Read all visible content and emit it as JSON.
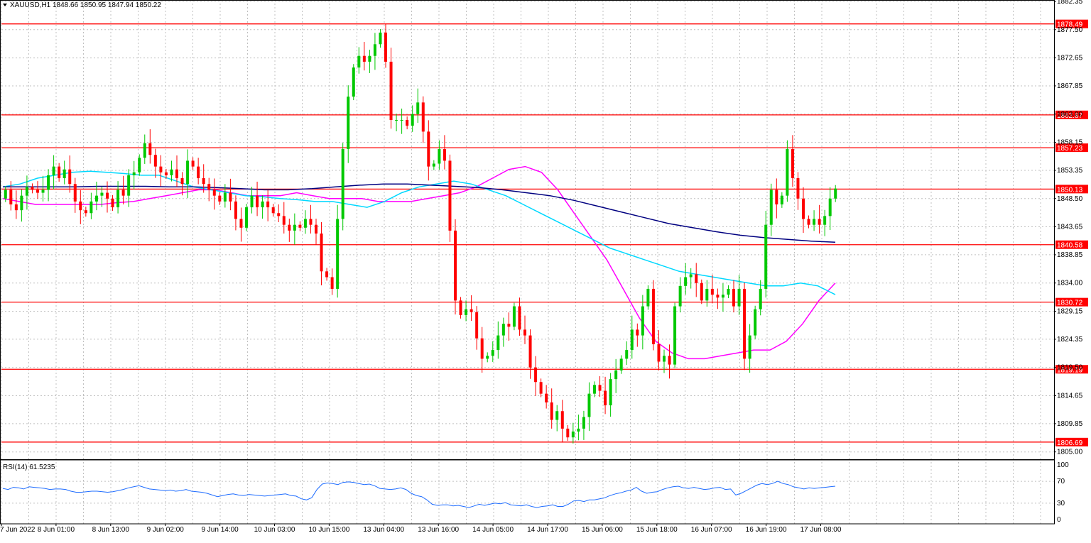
{
  "header": {
    "symbol_label": "XAUUSD,H1",
    "ohlc_label": "1848.66 1850.95 1847.94 1850.22",
    "menu_icon": "triangle-down-icon"
  },
  "rsi_panel": {
    "label": "RSI(14) 61.5235"
  },
  "colors": {
    "bull": "#00c800",
    "bear": "#ff0000",
    "grid": "#c0c0c0",
    "level": "#ff0000",
    "ma_fast": "#ff00ff",
    "ma_mid": "#00d8ff",
    "ma_slow": "#000080",
    "rsi": "#1e6cff"
  },
  "chart_data": [
    {
      "type": "candlestick",
      "title": "XAUUSD,H1",
      "ylim": [
        1803.5,
        1882.35
      ],
      "y_ticks": [
        "1882.35",
        "1877.50",
        "1872.65",
        "1867.85",
        "1863.00",
        "1858.15",
        "1853.35",
        "1848.50",
        "1843.65",
        "1838.85",
        "1834.00",
        "1829.15",
        "1824.35",
        "1819.50",
        "1814.65",
        "1809.85",
        "1805.00"
      ],
      "x_labels": [
        "7 Jun 2022",
        "8 Jun 01:00",
        "8 Jun 13:00",
        "9 Jun 02:00",
        "9 Jun 14:00",
        "10 Jun 03:00",
        "10 Jun 15:00",
        "13 Jun 04:00",
        "13 Jun 16:00",
        "14 Jun 05:00",
        "14 Jun 17:00",
        "15 Jun 06:00",
        "15 Jun 18:00",
        "16 Jun 07:00",
        "16 Jun 19:00",
        "17 Jun 08:00"
      ],
      "levels": [
        "1878.49",
        "1862.87",
        "1857.23",
        "1850.13",
        "1840.58",
        "1830.72",
        "1819.19",
        "1806.69"
      ],
      "candles_close": [
        1850.0,
        1847.5,
        1846.5,
        1849.0,
        1850.5,
        1850.0,
        1849.5,
        1850.0,
        1852.5,
        1854.0,
        1852.0,
        1853.5,
        1851.0,
        1848.0,
        1846.5,
        1846.0,
        1848.0,
        1849.0,
        1849.5,
        1848.5,
        1847.0,
        1850.0,
        1849.0,
        1852.5,
        1853.0,
        1855.5,
        1858.0,
        1856.0,
        1854.0,
        1853.0,
        1852.5,
        1853.5,
        1852.0,
        1851.0,
        1855.0,
        1854.0,
        1852.0,
        1851.0,
        1850.0,
        1849.0,
        1848.0,
        1849.5,
        1848.0,
        1845.0,
        1843.5,
        1847.0,
        1849.0,
        1847.0,
        1848.0,
        1847.0,
        1846.0,
        1845.5,
        1844.0,
        1843.0,
        1844.0,
        1843.5,
        1845.0,
        1844.0,
        1842.5,
        1836.0,
        1835.0,
        1833.0,
        1845.0,
        1857.0,
        1866.0,
        1871.0,
        1873.0,
        1872.0,
        1873.0,
        1875.0,
        1877.0,
        1872.0,
        1862.0,
        1862.0,
        1862.0,
        1861.0,
        1863.0,
        1865.0,
        1860.0,
        1854.0,
        1854.5,
        1857.0,
        1855.0,
        1843.0,
        1831.0,
        1828.5,
        1829.5,
        1829.0,
        1824.5,
        1821.0,
        1821.5,
        1822.5,
        1825.0,
        1827.0,
        1826.5,
        1830.0,
        1826.0,
        1825.0,
        1819.5,
        1817.0,
        1815.0,
        1813.5,
        1810.5,
        1812.0,
        1809.0,
        1807.5,
        1808.5,
        1809.0,
        1811.0,
        1815.0,
        1816.5,
        1815.5,
        1813.0,
        1817.5,
        1819.0,
        1821.0,
        1822.5,
        1826.0,
        1825.0,
        1830.0,
        1833.0,
        1823.5,
        1820.5,
        1821.5,
        1820.0,
        1830.0,
        1833.5,
        1835.0,
        1835.5,
        1834.0,
        1831.0,
        1833.0,
        1832.0,
        1831.5,
        1832.0,
        1833.0,
        1830.0,
        1833.0,
        1821.0,
        1825.0,
        1829.5,
        1833.0,
        1844.0,
        1850.0,
        1847.5,
        1849.0,
        1857.0,
        1852.0,
        1848.5,
        1845.0,
        1844.0,
        1845.0,
        1844.0,
        1845.5,
        1848.5,
        1850.22
      ],
      "series": [
        {
          "name": "ma_fast",
          "values": [
            1848.5,
            1848.0,
            1847.5,
            1847.5,
            1847.5,
            1847.5,
            1847.5,
            1847.8,
            1848.0,
            1848.5,
            1849.0,
            1849.5,
            1850.0,
            1850.0,
            1849.5,
            1849.0,
            1849.0,
            1849.0,
            1849.5,
            1849.0,
            1848.5,
            1848.5,
            1848.5,
            1848.0,
            1848.0,
            1848.0,
            1848.5,
            1849.0,
            1849.5,
            1850.5,
            1852.0,
            1853.5,
            1854.0,
            1853.0,
            1850.0,
            1846.0,
            1842.0,
            1838.0,
            1833.0,
            1828.0,
            1824.0,
            1822.0,
            1821.0,
            1821.0,
            1821.5,
            1822.0,
            1822.5,
            1822.5,
            1824.0,
            1827.0,
            1831.0,
            1834.0
          ]
        },
        {
          "name": "ma_mid",
          "values": [
            1850.5,
            1851.0,
            1852.0,
            1852.5,
            1853.0,
            1853.2,
            1853.0,
            1852.8,
            1852.5,
            1852.5,
            1851.5,
            1850.5,
            1850.0,
            1849.5,
            1849.0,
            1848.8,
            1848.5,
            1848.3,
            1848.0,
            1848.0,
            1847.5,
            1847.0,
            1848.0,
            1849.5,
            1850.5,
            1851.0,
            1851.5,
            1851.0,
            1850.0,
            1849.0,
            1847.5,
            1846.0,
            1844.5,
            1843.0,
            1841.5,
            1840.0,
            1839.0,
            1838.0,
            1837.0,
            1836.0,
            1835.5,
            1835.0,
            1834.5,
            1834.0,
            1833.5,
            1833.5,
            1834.0,
            1833.5,
            1832.0
          ]
        },
        {
          "name": "ma_slow",
          "values": [
            1850.5,
            1850.5,
            1850.5,
            1850.5,
            1850.6,
            1850.6,
            1850.6,
            1850.5,
            1850.5,
            1850.4,
            1850.2,
            1850.0,
            1850.0,
            1850.2,
            1850.5,
            1850.8,
            1851.0,
            1851.0,
            1850.8,
            1850.6,
            1850.4,
            1850.0,
            1849.5,
            1849.0,
            1848.2,
            1847.2,
            1846.2,
            1845.2,
            1844.2,
            1843.5,
            1842.8,
            1842.2,
            1841.8,
            1841.5,
            1841.2,
            1841.0
          ]
        }
      ]
    },
    {
      "type": "line",
      "title": "RSI(14) 61.5235",
      "ylim": [
        0,
        100
      ],
      "y_ticks": [
        "100",
        "70",
        "30",
        "0"
      ],
      "series": [
        {
          "name": "RSI(14)",
          "values": [
            57,
            55,
            59,
            58,
            56,
            60,
            59,
            58,
            57,
            55,
            56,
            56,
            55,
            52,
            50,
            50,
            51,
            52,
            52,
            51,
            50,
            51,
            53,
            55,
            58,
            60,
            62,
            59,
            56,
            55,
            54,
            53,
            54,
            52,
            53,
            55,
            52,
            51,
            50,
            48,
            45,
            42,
            44,
            46,
            47,
            45,
            44,
            46,
            45,
            44,
            43,
            44,
            45,
            46,
            47,
            44,
            43,
            38,
            36,
            40,
            55,
            65,
            67,
            66,
            64,
            68,
            69,
            68,
            66,
            64,
            65,
            62,
            57,
            56,
            55,
            56,
            58,
            55,
            48,
            44,
            42,
            36,
            28,
            26,
            27,
            27,
            25,
            26,
            24,
            22,
            25,
            28,
            26,
            28,
            30,
            29,
            31,
            27,
            26,
            25,
            27,
            24,
            22,
            24,
            25,
            27,
            24,
            24,
            28,
            34,
            35,
            33,
            36,
            36,
            38,
            40,
            44,
            47,
            49,
            52,
            54,
            59,
            52,
            48,
            50,
            51,
            55,
            58,
            60,
            61,
            58,
            57,
            59,
            57,
            55,
            56,
            58,
            59,
            55,
            56,
            45,
            48,
            53,
            58,
            63,
            66,
            64,
            66,
            70,
            66,
            64,
            60,
            58,
            56,
            58,
            57,
            58,
            59,
            60,
            61
          ]
        }
      ]
    }
  ]
}
